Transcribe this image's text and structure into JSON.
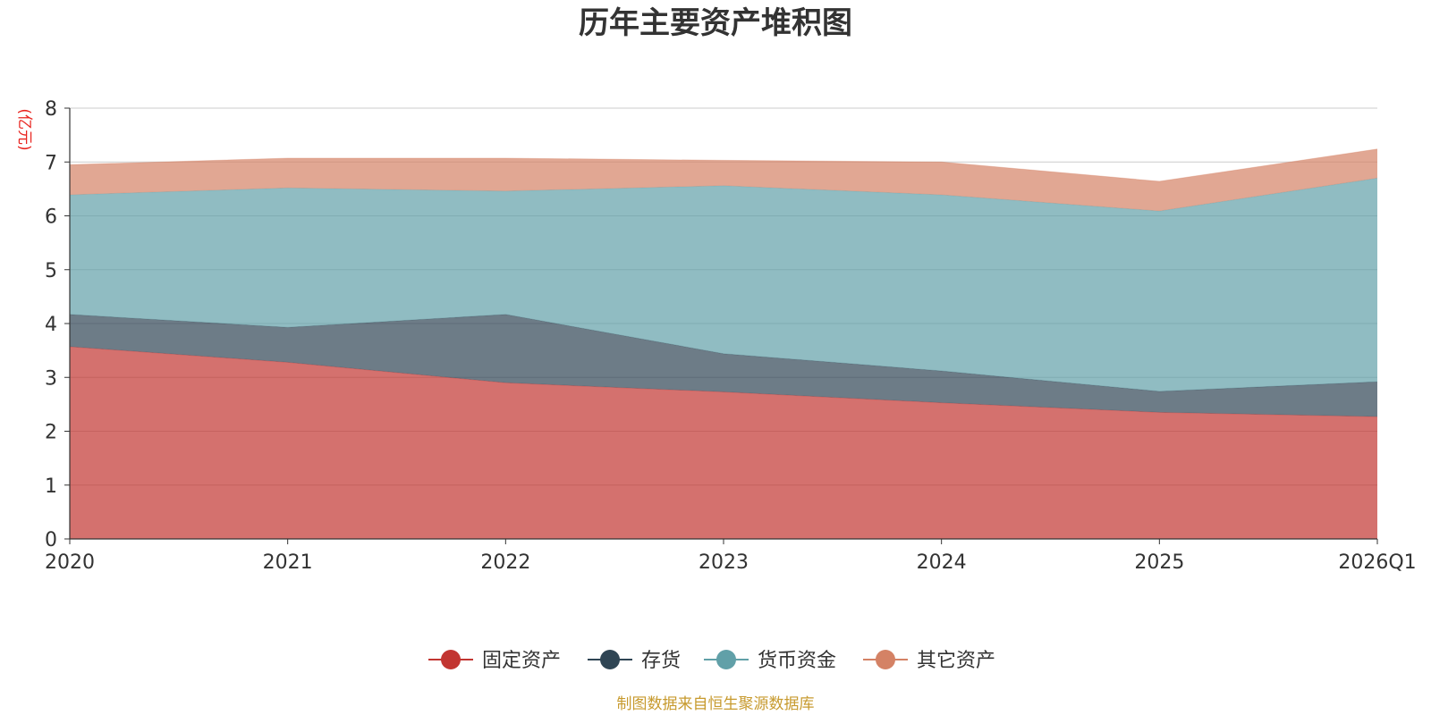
{
  "chart_data": {
    "type": "area",
    "stacked": true,
    "title": "历年主要资产堆积图",
    "unit": "(亿元)",
    "categories": [
      "2020",
      "2021",
      "2022",
      "2023",
      "2024",
      "2025",
      "2026Q1"
    ],
    "ylim": [
      0,
      8
    ],
    "yticks": [
      "0",
      "1",
      "2",
      "3",
      "4",
      "5",
      "6",
      "7",
      "8"
    ],
    "grid": true,
    "legend_position": "bottom",
    "series": [
      {
        "name": "固定资产",
        "color": "#c23531",
        "values": [
          3.57,
          3.28,
          2.9,
          2.73,
          2.53,
          2.35,
          2.27
        ]
      },
      {
        "name": "存货",
        "color": "#2f4554",
        "values": [
          0.6,
          0.65,
          1.27,
          0.71,
          0.59,
          0.39,
          0.65
        ]
      },
      {
        "name": "货币资金",
        "color": "#61a0a8",
        "values": [
          2.22,
          2.59,
          2.29,
          3.12,
          3.27,
          3.35,
          3.78
        ]
      },
      {
        "name": "其它资产",
        "color": "#d48265",
        "values": [
          0.56,
          0.55,
          0.61,
          0.47,
          0.61,
          0.55,
          0.54
        ]
      }
    ],
    "source": "制图数据来自恒生聚源数据库"
  }
}
